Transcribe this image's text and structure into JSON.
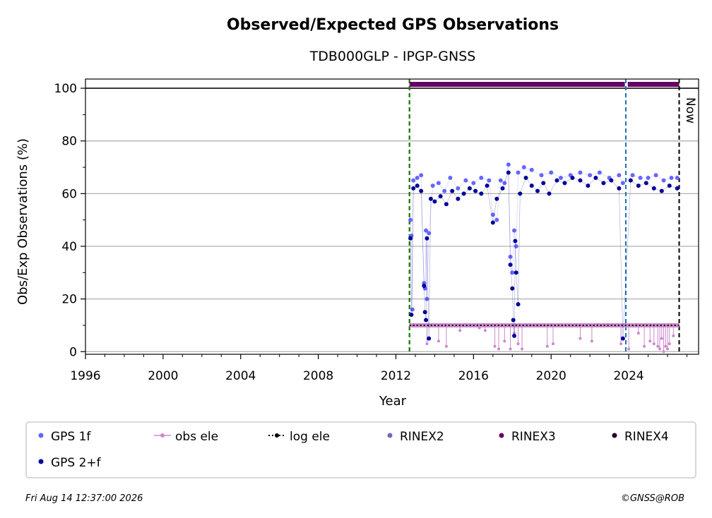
{
  "chart_data": {
    "type": "scatter",
    "title": "Observed/Expected GPS Observations",
    "subtitle": "TDB000GLP - IPGP-GNSS",
    "xlabel": "Year",
    "ylabel": "Obs/Exp Observations (%)",
    "xlim": [
      1996,
      2027.6
    ],
    "ylim": [
      -1,
      103.5
    ],
    "xticks": [
      "1996",
      "2000",
      "2004",
      "2008",
      "2012",
      "2016",
      "2020",
      "2024"
    ],
    "yticks": [
      "0",
      "20",
      "40",
      "60",
      "80",
      "100"
    ],
    "grid": "horizontal",
    "legend_position": "bottom",
    "reference_line_y": 100,
    "now_label": "Now",
    "now_x": 2026.6,
    "vlines": [
      {
        "x": 2012.7,
        "style": "red dashed"
      },
      {
        "x": 2012.7,
        "style": "green dashed"
      },
      {
        "x": 2023.85,
        "style": "blue dashed"
      },
      {
        "x": 2026.6,
        "style": "black dashed"
      }
    ],
    "rinex3_bar": {
      "y": 101.5,
      "segments": [
        [
          2012.7,
          2023.8
        ],
        [
          2023.95,
          2026.6
        ]
      ]
    },
    "series": [
      {
        "name": "GPS 1f",
        "color": "#6666ff",
        "points": [
          [
            2012.75,
            50
          ],
          [
            2012.8,
            44
          ],
          [
            2012.85,
            16
          ],
          [
            2012.9,
            65
          ],
          [
            2013.1,
            66
          ],
          [
            2013.3,
            67
          ],
          [
            2013.45,
            26
          ],
          [
            2013.5,
            24
          ],
          [
            2013.55,
            46
          ],
          [
            2013.6,
            20
          ],
          [
            2013.7,
            45
          ],
          [
            2013.9,
            63
          ],
          [
            2014.2,
            64
          ],
          [
            2014.5,
            61
          ],
          [
            2014.8,
            66
          ],
          [
            2015.2,
            62
          ],
          [
            2015.6,
            65
          ],
          [
            2016.0,
            64
          ],
          [
            2016.4,
            66
          ],
          [
            2016.8,
            65
          ],
          [
            2017.0,
            52
          ],
          [
            2017.2,
            50
          ],
          [
            2017.4,
            65
          ],
          [
            2017.6,
            64
          ],
          [
            2017.8,
            71
          ],
          [
            2017.9,
            36
          ],
          [
            2018.0,
            30
          ],
          [
            2018.1,
            46
          ],
          [
            2018.2,
            40
          ],
          [
            2018.3,
            68
          ],
          [
            2018.6,
            70
          ],
          [
            2019.0,
            69
          ],
          [
            2019.5,
            67
          ],
          [
            2020.0,
            68
          ],
          [
            2020.5,
            66
          ],
          [
            2021.0,
            67
          ],
          [
            2021.5,
            68
          ],
          [
            2022.0,
            67
          ],
          [
            2022.5,
            68
          ],
          [
            2023.0,
            66
          ],
          [
            2023.5,
            67
          ],
          [
            2023.7,
            64
          ],
          [
            2024.2,
            67
          ],
          [
            2024.6,
            66
          ],
          [
            2025.0,
            66
          ],
          [
            2025.4,
            67
          ],
          [
            2025.8,
            65
          ],
          [
            2026.2,
            66
          ],
          [
            2026.5,
            66
          ]
        ]
      },
      {
        "name": "GPS 2+f",
        "color": "#000099",
        "points": [
          [
            2012.75,
            43
          ],
          [
            2012.8,
            14
          ],
          [
            2012.9,
            62
          ],
          [
            2013.1,
            63
          ],
          [
            2013.3,
            61
          ],
          [
            2013.45,
            25
          ],
          [
            2013.5,
            15
          ],
          [
            2013.55,
            12
          ],
          [
            2013.6,
            43
          ],
          [
            2013.7,
            5
          ],
          [
            2013.8,
            58
          ],
          [
            2014.0,
            57
          ],
          [
            2014.3,
            59
          ],
          [
            2014.6,
            56
          ],
          [
            2014.9,
            61
          ],
          [
            2015.2,
            58
          ],
          [
            2015.5,
            60
          ],
          [
            2015.8,
            62
          ],
          [
            2016.1,
            61
          ],
          [
            2016.4,
            60
          ],
          [
            2016.7,
            63
          ],
          [
            2017.0,
            49
          ],
          [
            2017.2,
            58
          ],
          [
            2017.5,
            62
          ],
          [
            2017.8,
            68
          ],
          [
            2017.9,
            33
          ],
          [
            2018.0,
            24
          ],
          [
            2018.05,
            12
          ],
          [
            2018.1,
            6
          ],
          [
            2018.15,
            42
          ],
          [
            2018.2,
            30
          ],
          [
            2018.3,
            18
          ],
          [
            2018.4,
            60
          ],
          [
            2018.7,
            66
          ],
          [
            2019.0,
            63
          ],
          [
            2019.3,
            61
          ],
          [
            2019.6,
            64
          ],
          [
            2019.9,
            60
          ],
          [
            2020.3,
            65
          ],
          [
            2020.7,
            64
          ],
          [
            2021.1,
            66
          ],
          [
            2021.5,
            65
          ],
          [
            2021.9,
            63
          ],
          [
            2022.3,
            66
          ],
          [
            2022.7,
            64
          ],
          [
            2023.1,
            65
          ],
          [
            2023.5,
            62
          ],
          [
            2023.7,
            5
          ],
          [
            2024.1,
            65
          ],
          [
            2024.5,
            63
          ],
          [
            2024.9,
            64
          ],
          [
            2025.3,
            62
          ],
          [
            2025.7,
            61
          ],
          [
            2026.1,
            63
          ],
          [
            2026.5,
            62
          ]
        ]
      },
      {
        "name": "obs ele",
        "color": "#cc88cc",
        "points": [
          [
            2013.6,
            3
          ],
          [
            2014.2,
            4
          ],
          [
            2014.6,
            2
          ],
          [
            2015.3,
            8
          ],
          [
            2016.3,
            9
          ],
          [
            2016.6,
            8
          ],
          [
            2017.1,
            2
          ],
          [
            2017.3,
            1
          ],
          [
            2017.6,
            4
          ],
          [
            2017.9,
            1
          ],
          [
            2018.1,
            7
          ],
          [
            2018.3,
            3
          ],
          [
            2018.5,
            1
          ],
          [
            2019.8,
            2
          ],
          [
            2020.1,
            3
          ],
          [
            2021.5,
            5
          ],
          [
            2022.1,
            4
          ],
          [
            2023.6,
            3
          ],
          [
            2024.0,
            1
          ],
          [
            2024.5,
            7
          ],
          [
            2024.8,
            2
          ],
          [
            2025.1,
            4
          ],
          [
            2025.3,
            3
          ],
          [
            2025.5,
            2
          ],
          [
            2025.6,
            1
          ],
          [
            2025.7,
            5
          ],
          [
            2025.8,
            0
          ],
          [
            2025.9,
            2
          ],
          [
            2026.0,
            1
          ],
          [
            2026.1,
            3
          ],
          [
            2026.3,
            6
          ]
        ]
      },
      {
        "name": "log ele",
        "color": "#000000",
        "segments": [
          [
            2012.7,
            10
          ],
          [
            2026.6,
            10
          ]
        ]
      },
      {
        "name": "RINEX2",
        "color": "#7766bb",
        "points": []
      },
      {
        "name": "RINEX3",
        "color": "#660066",
        "points": []
      },
      {
        "name": "RINEX4",
        "color": "#220022",
        "points": []
      }
    ]
  },
  "legend": [
    {
      "label": "GPS 1f",
      "color": "#6666ff",
      "marker": "dot"
    },
    {
      "label": "obs ele",
      "color": "#cc88cc",
      "marker": "line-dot"
    },
    {
      "label": "log ele",
      "color": "#000000",
      "marker": "dotted-dot"
    },
    {
      "label": "RINEX2",
      "color": "#7766bb",
      "marker": "dot"
    },
    {
      "label": "RINEX3",
      "color": "#660066",
      "marker": "dot"
    },
    {
      "label": "RINEX4",
      "color": "#220022",
      "marker": "dot"
    },
    {
      "label": "GPS 2+f",
      "color": "#000099",
      "marker": "dot"
    }
  ],
  "footer": {
    "timestamp": "Fri Aug 14 12:37:00 2026",
    "credit": "©GNSS@ROB"
  }
}
